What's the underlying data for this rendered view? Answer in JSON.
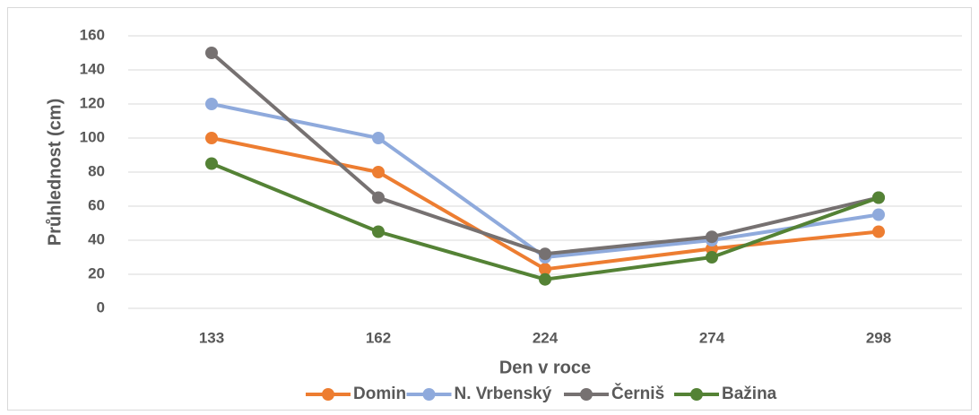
{
  "chart_data": {
    "type": "line",
    "x_label": "Den v roce",
    "y_label": "Průhlednost (cm)",
    "categories": [
      "133",
      "162",
      "224",
      "274",
      "298"
    ],
    "series": [
      {
        "name": "Domin",
        "color": "#ED7D31",
        "values": [
          100,
          80,
          23,
          35,
          45
        ]
      },
      {
        "name": "N. Vrbenský",
        "color": "#8FAADC",
        "values": [
          120,
          100,
          30,
          40,
          55
        ]
      },
      {
        "name": "Černiš",
        "color": "#767171",
        "values": [
          150,
          65,
          32,
          42,
          65
        ]
      },
      {
        "name": "Bažina",
        "color": "#548235",
        "values": [
          85,
          45,
          17,
          30,
          65
        ]
      }
    ],
    "ylim": [
      0,
      160
    ],
    "yticks": [
      0,
      20,
      40,
      60,
      80,
      100,
      120,
      140,
      160
    ],
    "grid": true,
    "legend": "bottom"
  }
}
